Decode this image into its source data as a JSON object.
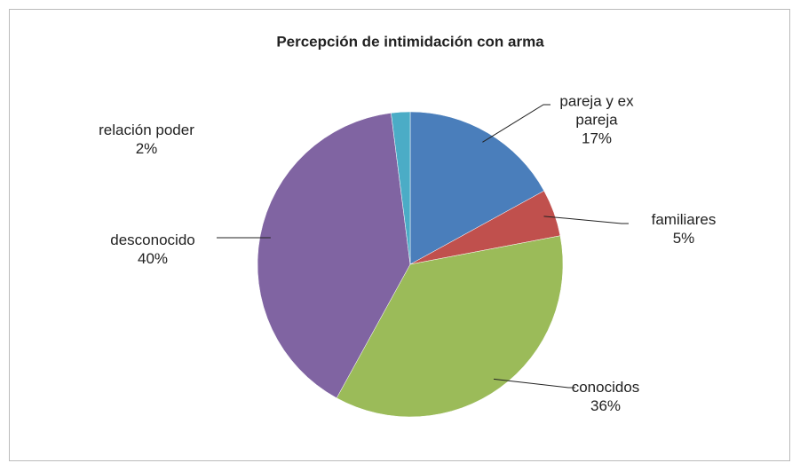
{
  "chart_data": {
    "type": "pie",
    "title": "Percepción de intimidación con arma",
    "categories": [
      "pareja y ex pareja",
      "familiares",
      "conocidos",
      "desconocido",
      "relación poder"
    ],
    "values": [
      17,
      5,
      36,
      40,
      2
    ],
    "value_labels": [
      "17%",
      "5%",
      "36%",
      "40%",
      "2%"
    ],
    "colors": [
      "#4a7ebb",
      "#c0504d",
      "#9bbb59",
      "#8064a2",
      "#4bacc6"
    ]
  }
}
